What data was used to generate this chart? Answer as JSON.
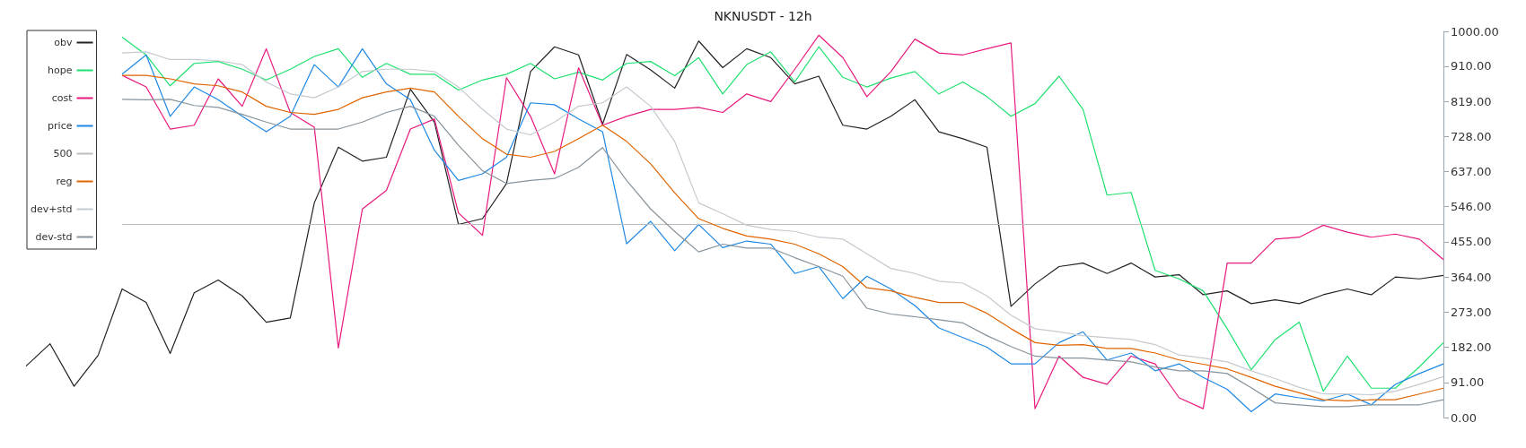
{
  "chart_data": {
    "type": "line",
    "title": "NKNUSDT - 12h",
    "categories": [
      null,
      null,
      null,
      null,
      null,
      null,
      null,
      null,
      null,
      null,
      null,
      null,
      null,
      null,
      null,
      null,
      null,
      null,
      null,
      null,
      null,
      null,
      null,
      null,
      null,
      null,
      null,
      null,
      null,
      null,
      null,
      null,
      null,
      null,
      null,
      null,
      null,
      null,
      null,
      null,
      null,
      null,
      null,
      null,
      null,
      null,
      null,
      null,
      null,
      null,
      null,
      null,
      null,
      null,
      null,
      null,
      null,
      null,
      null,
      null
    ],
    "series": [
      {
        "name": "obv",
        "color": "#222222",
        "values": [
          133,
          191,
          81,
          161,
          333,
          298,
          166,
          323,
          356,
          315,
          247,
          258,
          556,
          700,
          664,
          674,
          850,
          765,
          500,
          515,
          606,
          896,
          960,
          939,
          760,
          940,
          900,
          853,
          975,
          906,
          955,
          932,
          864,
          884,
          757,
          747,
          780,
          823,
          740,
          722,
          700,
          288,
          346,
          391,
          400,
          373,
          400,
          364,
          370,
          318,
          328,
          295,
          305,
          295,
          318,
          333,
          318,
          364,
          359,
          368
        ]
      },
      {
        "name": "hope",
        "color": "#1ee06e",
        "values": [
          null,
          null,
          null,
          null,
          985,
          939,
          859,
          917,
          922,
          902,
          874,
          902,
          935,
          955,
          881,
          917,
          889,
          889,
          848,
          874,
          889,
          917,
          877,
          894,
          874,
          917,
          922,
          885,
          932,
          838,
          914,
          947,
          869,
          960,
          881,
          856,
          879,
          896,
          838,
          869,
          831,
          780,
          813,
          884,
          798,
          576,
          583,
          381,
          359,
          328,
          230,
          124,
          202,
          247,
          68,
          159,
          76,
          76,
          131,
          194
        ]
      },
      {
        "name": "cost",
        "color": "#e8197d",
        "values": [
          null,
          null,
          null,
          null,
          886,
          856,
          747,
          757,
          877,
          806,
          955,
          790,
          752,
          180,
          540,
          588,
          747,
          773,
          530,
          472,
          880,
          780,
          631,
          906,
          757,
          780,
          798,
          798,
          803,
          790,
          838,
          818,
          902,
          990,
          932,
          831,
          896,
          980,
          944,
          939,
          955,
          970,
          23,
          159,
          104,
          86,
          159,
          139,
          51,
          23,
          400,
          400,
          462,
          467,
          498,
          480,
          467,
          475,
          462,
          409
        ]
      },
      {
        "name": "price",
        "color": "#1e88e5",
        "values": [
          null,
          null,
          null,
          null,
          889,
          939,
          780,
          856,
          823,
          780,
          740,
          780,
          914,
          856,
          955,
          864,
          823,
          692,
          614,
          631,
          674,
          815,
          810,
          773,
          740,
          450,
          508,
          432,
          500,
          440,
          457,
          449,
          373,
          391,
          308,
          366,
          333,
          290,
          232,
          207,
          182,
          139,
          139,
          194,
          222,
          149,
          167,
          121,
          139,
          104,
          73,
          15,
          61,
          51,
          43,
          61,
          33,
          86,
          114,
          139
        ]
      },
      {
        "name": "500",
        "color": "#bdbdbd",
        "values": [
          null,
          null,
          null,
          null,
          500,
          500,
          500,
          500,
          500,
          500,
          500,
          500,
          500,
          500,
          500,
          500,
          500,
          500,
          500,
          500,
          500,
          500,
          500,
          500,
          500,
          500,
          500,
          500,
          500,
          500,
          500,
          500,
          500,
          500,
          500,
          500,
          500,
          500,
          500,
          500,
          500,
          500,
          500,
          500,
          500,
          500,
          500,
          500,
          500,
          500,
          500,
          500,
          500,
          500,
          500,
          500,
          500,
          500,
          500,
          500
        ]
      },
      {
        "name": "reg",
        "color": "#e06400",
        "values": [
          null,
          null,
          null,
          null,
          886,
          886,
          877,
          864,
          859,
          843,
          806,
          790,
          785,
          798,
          828,
          843,
          853,
          843,
          780,
          722,
          682,
          674,
          689,
          722,
          757,
          715,
          657,
          582,
          515,
          490,
          470,
          462,
          449,
          424,
          391,
          336,
          328,
          311,
          298,
          298,
          270,
          230,
          194,
          187,
          189,
          179,
          179,
          167,
          149,
          138,
          126,
          104,
          81,
          64,
          46,
          43,
          46,
          46,
          61,
          76
        ]
      },
      {
        "name": "dev+std",
        "color": "#c4cacf",
        "values": [
          null,
          null,
          null,
          null,
          944,
          947,
          927,
          927,
          924,
          914,
          869,
          838,
          828,
          856,
          896,
          902,
          902,
          896,
          856,
          798,
          747,
          732,
          765,
          806,
          815,
          856,
          806,
          715,
          556,
          528,
          498,
          487,
          482,
          467,
          462,
          424,
          386,
          373,
          353,
          348,
          315,
          265,
          230,
          222,
          212,
          207,
          202,
          189,
          162,
          154,
          144,
          121,
          101,
          78,
          61,
          61,
          59,
          68,
          86,
          106
        ]
      },
      {
        "name": "dev-std",
        "color": "#87939b",
        "values": [
          null,
          null,
          null,
          null,
          824,
          823,
          824,
          808,
          803,
          785,
          765,
          747,
          747,
          747,
          765,
          790,
          806,
          780,
          705,
          639,
          606,
          614,
          619,
          648,
          699,
          614,
          540,
          482,
          429,
          449,
          439,
          439,
          414,
          391,
          366,
          283,
          268,
          261,
          253,
          245,
          212,
          184,
          159,
          154,
          154,
          149,
          144,
          131,
          121,
          121,
          114,
          77,
          38,
          33,
          28,
          28,
          33,
          33,
          33,
          46
        ]
      }
    ],
    "ylim": [
      0,
      1000
    ],
    "yticks": [
      {
        "value": 0,
        "label": "0.00"
      },
      {
        "value": 91,
        "label": "91.00"
      },
      {
        "value": 182,
        "label": "182.00"
      },
      {
        "value": 273,
        "label": "273.00"
      },
      {
        "value": 364,
        "label": "364.00"
      },
      {
        "value": 455,
        "label": "455.00"
      },
      {
        "value": 546,
        "label": "546.00"
      },
      {
        "value": 637,
        "label": "637.00"
      },
      {
        "value": 728,
        "label": "728.00"
      },
      {
        "value": 819,
        "label": "819.00"
      },
      {
        "value": 910,
        "label": "910.00"
      },
      {
        "value": 1000,
        "label": "1000.00"
      }
    ],
    "grid": false,
    "legend": "top left",
    "marker": "none",
    "line_style": "solid"
  }
}
